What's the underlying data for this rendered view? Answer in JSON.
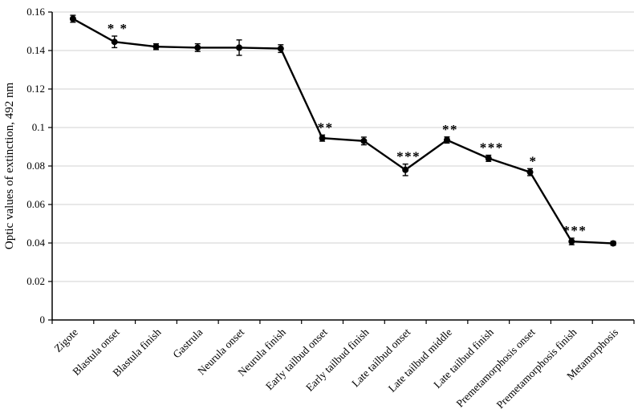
{
  "chart_data": {
    "type": "line",
    "title": "",
    "xlabel": "",
    "ylabel": "Optic values of extinction, 492 nm",
    "ylim": [
      0,
      0.16
    ],
    "ytick_step": 0.02,
    "ytick_labels": [
      "0",
      "0.02",
      "0.04",
      "0.06",
      "0.08",
      "0.1",
      "0.12",
      "0.14",
      "0.16"
    ],
    "grid": "horizontal",
    "grid_color": "#d9d9d9",
    "axis_color": "#000000",
    "series_color": "#000000",
    "legend": "none",
    "categories": [
      "Zigote",
      "Blastula onset",
      "Blastula finish",
      "Gastrula",
      "Neurula onset",
      "Neurula finish",
      "Early tailbud onset",
      "Early tailbud finish",
      "Late tailbud onset",
      "Late tailbud middle",
      "Late tailbud finish",
      "Premetamorphosis onset",
      "Premetamorphosis finish",
      "Metamorphosis"
    ],
    "series": [
      {
        "name": "Optic values of extinction",
        "values": [
          0.1565,
          0.1445,
          0.142,
          0.1415,
          0.1415,
          0.141,
          0.0945,
          0.093,
          0.078,
          0.0935,
          0.084,
          0.0768,
          0.0408,
          0.0398
        ],
        "errors": [
          0.0018,
          0.003,
          0.0015,
          0.002,
          0.004,
          0.002,
          0.0016,
          0.002,
          0.003,
          0.0016,
          0.0016,
          0.0018,
          0.0017,
          0.001
        ],
        "significance": [
          "",
          "* *",
          "",
          "",
          "",
          "",
          "**",
          "",
          "***",
          "**",
          "***",
          "*",
          "***",
          ""
        ]
      }
    ]
  }
}
